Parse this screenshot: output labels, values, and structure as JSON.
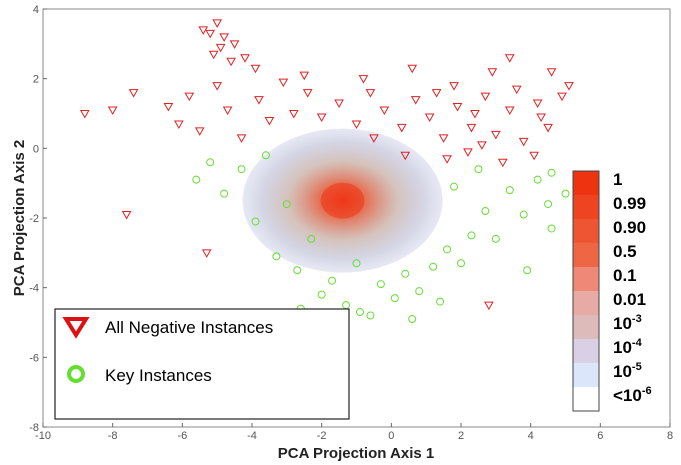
{
  "chart_data": {
    "type": "scatter",
    "xlabel": "PCA Projection Axis 1",
    "ylabel": "PCA Projection Axis 2",
    "xlim": [
      -10,
      8
    ],
    "ylim": [
      -8,
      4
    ],
    "xticks": [
      "-10",
      "-8",
      "-6",
      "-4",
      "-2",
      "0",
      "2",
      "4",
      "6",
      "8"
    ],
    "yticks": [
      "-8",
      "-6",
      "-4",
      "-2",
      "0",
      "2",
      "4"
    ],
    "grid": false,
    "legend_position": "bottom-left",
    "series": [
      {
        "name": "All Negative Instances",
        "marker": "triangle-down-open",
        "color": "#dd2222",
        "points": [
          [
            -5.0,
            3.6
          ],
          [
            -5.2,
            3.3
          ],
          [
            -4.8,
            3.2
          ],
          [
            -4.5,
            3.0
          ],
          [
            -5.4,
            3.4
          ],
          [
            -4.9,
            2.9
          ],
          [
            -4.2,
            2.6
          ],
          [
            -3.9,
            2.3
          ],
          [
            -4.6,
            2.5
          ],
          [
            -5.1,
            2.7
          ],
          [
            -8.8,
            1.0
          ],
          [
            -8.0,
            1.1
          ],
          [
            -7.4,
            1.6
          ],
          [
            -7.6,
            -1.9
          ],
          [
            -5.3,
            -3.0
          ],
          [
            -6.4,
            1.2
          ],
          [
            -6.1,
            0.7
          ],
          [
            -5.8,
            1.5
          ],
          [
            -5.5,
            0.5
          ],
          [
            -5.0,
            1.8
          ],
          [
            -4.7,
            1.1
          ],
          [
            -4.3,
            0.3
          ],
          [
            -3.8,
            1.4
          ],
          [
            -3.5,
            0.8
          ],
          [
            -3.1,
            1.9
          ],
          [
            -2.8,
            1.0
          ],
          [
            -2.4,
            1.6
          ],
          [
            -2.0,
            0.9
          ],
          [
            -1.5,
            1.3
          ],
          [
            -1.0,
            0.7
          ],
          [
            -0.6,
            1.6
          ],
          [
            -0.2,
            1.1
          ],
          [
            0.3,
            0.6
          ],
          [
            0.7,
            1.4
          ],
          [
            1.1,
            0.9
          ],
          [
            1.5,
            0.3
          ],
          [
            1.9,
            1.2
          ],
          [
            2.3,
            0.6
          ],
          [
            2.7,
            1.5
          ],
          [
            3.0,
            0.4
          ],
          [
            3.4,
            1.1
          ],
          [
            3.8,
            0.2
          ],
          [
            4.2,
            1.3
          ],
          [
            4.5,
            0.6
          ],
          [
            4.9,
            1.5
          ],
          [
            3.4,
            2.6
          ],
          [
            4.6,
            2.2
          ],
          [
            5.1,
            1.8
          ],
          [
            2.9,
            2.2
          ],
          [
            0.6,
            2.3
          ],
          [
            -0.8,
            2.0
          ],
          [
            -2.5,
            2.1
          ],
          [
            1.8,
            1.8
          ],
          [
            2.2,
            -0.1
          ],
          [
            2.6,
            0.1
          ],
          [
            3.2,
            -0.4
          ],
          [
            4.1,
            -0.2
          ],
          [
            1.6,
            -0.3
          ],
          [
            0.4,
            -0.2
          ],
          [
            -0.5,
            0.3
          ],
          [
            2.8,
            -4.5
          ],
          [
            4.3,
            0.9
          ],
          [
            3.6,
            1.7
          ],
          [
            2.4,
            1.0
          ],
          [
            1.3,
            1.6
          ]
        ]
      },
      {
        "name": "Key Instances",
        "marker": "circle-open",
        "color": "#66dd33",
        "points": [
          [
            -5.6,
            -0.9
          ],
          [
            -5.2,
            -0.4
          ],
          [
            -4.8,
            -1.3
          ],
          [
            -4.3,
            -0.6
          ],
          [
            -3.9,
            -2.1
          ],
          [
            -3.6,
            -0.2
          ],
          [
            -3.3,
            -3.1
          ],
          [
            -3.0,
            -1.6
          ],
          [
            -2.7,
            -3.5
          ],
          [
            -2.3,
            -2.6
          ],
          [
            -2.0,
            -4.2
          ],
          [
            -1.7,
            -3.8
          ],
          [
            -1.3,
            -4.5
          ],
          [
            -1.0,
            -3.3
          ],
          [
            -0.6,
            -4.8
          ],
          [
            -0.3,
            -3.9
          ],
          [
            0.1,
            -4.3
          ],
          [
            0.4,
            -3.6
          ],
          [
            0.8,
            -4.1
          ],
          [
            1.2,
            -3.4
          ],
          [
            1.6,
            -2.9
          ],
          [
            2.0,
            -3.3
          ],
          [
            2.3,
            -2.5
          ],
          [
            2.7,
            -1.8
          ],
          [
            3.0,
            -2.6
          ],
          [
            3.4,
            -1.2
          ],
          [
            3.8,
            -1.9
          ],
          [
            4.2,
            -0.9
          ],
          [
            4.6,
            -0.7
          ],
          [
            4.5,
            -1.6
          ],
          [
            3.9,
            -3.5
          ],
          [
            4.6,
            -2.3
          ],
          [
            5.0,
            -1.3
          ],
          [
            2.5,
            -0.6
          ],
          [
            1.8,
            -1.1
          ],
          [
            -2.6,
            -4.6
          ],
          [
            -1.6,
            -5.0
          ],
          [
            -0.9,
            -4.7
          ],
          [
            0.6,
            -4.9
          ],
          [
            1.4,
            -4.4
          ]
        ]
      }
    ],
    "density": {
      "center": [
        -1.4,
        -1.5
      ],
      "color_scale": "white-blue-gray-to-red"
    },
    "colorbar": {
      "labels": [
        "1",
        "0.99",
        "0.90",
        "0.5",
        "0.1",
        "0.01",
        "10-3",
        "10-4",
        "10-5",
        "<10-6"
      ],
      "colors": [
        "#ee3311",
        "#ee4422",
        "#ee5533",
        "#ee6644",
        "#ee8877",
        "#e8aaa5",
        "#ddbbbb",
        "#d9d0e6",
        "#dbe6fa",
        "#ffffff"
      ]
    }
  },
  "legend": {
    "items": [
      {
        "label": "All Negative Instances",
        "icon": "triangle-down-icon",
        "color": "#dd1111"
      },
      {
        "label": "Key Instances",
        "icon": "circle-icon",
        "color": "#66dd33"
      }
    ]
  },
  "colorbar_labels": [
    {
      "base": "1",
      "exp": ""
    },
    {
      "base": "0.99",
      "exp": ""
    },
    {
      "base": "0.90",
      "exp": ""
    },
    {
      "base": "0.5",
      "exp": ""
    },
    {
      "base": "0.1",
      "exp": ""
    },
    {
      "base": "0.01",
      "exp": ""
    },
    {
      "base": "10",
      "exp": "-3"
    },
    {
      "base": "10",
      "exp": "-4"
    },
    {
      "base": "10",
      "exp": "-5"
    },
    {
      "base": "<10",
      "exp": "-6"
    }
  ]
}
